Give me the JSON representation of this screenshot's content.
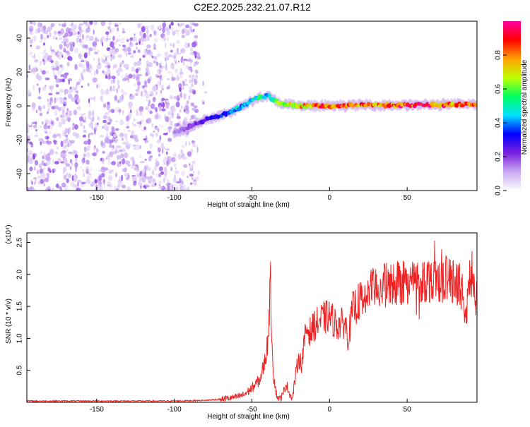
{
  "title": "C2E2.2025.232.21.07.R12",
  "chart_data": [
    {
      "type": "heatmap",
      "name": "spectrogram",
      "xlabel": "Height of straight line (km)",
      "ylabel": "Frequency (Hz)",
      "xlim": [
        -195,
        95
      ],
      "ylim": [
        -50,
        50
      ],
      "x_ticks": [
        -150,
        -100,
        -50,
        0,
        50
      ],
      "y_ticks": [
        -40,
        -20,
        0,
        20,
        40
      ],
      "grid": false,
      "colorbar": {
        "label": "Normalized spectral amplitude",
        "range": [
          0,
          1
        ],
        "ticks": [
          0.0,
          0.2,
          0.4,
          0.6,
          0.8
        ],
        "colors": [
          "#ffffff",
          "#c8a8f0",
          "#7a20e0",
          "#0000ff",
          "#00e0ff",
          "#00ff60",
          "#c0ff00",
          "#ffa000",
          "#ff0000",
          "#ff00a0"
        ]
      },
      "noise_region": {
        "x": [
          -195,
          -85
        ],
        "y": [
          -50,
          50
        ],
        "amplitude": [
          0.05,
          0.2
        ]
      },
      "ridge": {
        "x": [
          -100,
          -90,
          -80,
          -70,
          -60,
          -50,
          -45,
          -40,
          -35,
          -30,
          -20,
          0,
          20,
          50,
          95
        ],
        "y": [
          -16,
          -12,
          -8,
          -6,
          -2,
          3,
          5,
          6,
          3,
          1,
          0,
          0,
          0.5,
          0.5,
          1
        ],
        "amplitude": [
          0.15,
          0.2,
          0.3,
          0.35,
          0.45,
          0.5,
          0.55,
          0.5,
          0.6,
          0.7,
          0.8,
          0.9,
          0.85,
          0.95,
          0.85
        ]
      }
    },
    {
      "type": "line",
      "name": "snr",
      "xlabel": "Height of straight line (km)",
      "ylabel": "SNR (10 * v/v)",
      "y_multiplier": "(x10⁴)",
      "xlim": [
        -195,
        95
      ],
      "ylim": [
        0,
        2.65
      ],
      "x_ticks": [
        -150,
        -100,
        -50,
        0,
        50
      ],
      "y_ticks": [
        0.5,
        1.0,
        1.5,
        2.0,
        2.5
      ],
      "grid": false,
      "color": "#ee2222",
      "x": [
        -195,
        -100,
        -80,
        -70,
        -60,
        -55,
        -50,
        -45,
        -42,
        -40,
        -38,
        -37,
        -36,
        -34,
        -32,
        -30,
        -28,
        -26,
        -24,
        -22,
        -20,
        -18,
        -15,
        -12,
        -10,
        -5,
        0,
        5,
        10,
        12,
        15,
        20,
        25,
        30,
        40,
        50,
        60,
        70,
        80,
        85,
        88,
        90,
        95
      ],
      "y": [
        0.02,
        0.02,
        0.03,
        0.05,
        0.08,
        0.12,
        0.22,
        0.35,
        0.6,
        0.9,
        1.85,
        0.9,
        0.4,
        0.1,
        0.05,
        0.12,
        0.3,
        0.15,
        0.05,
        0.4,
        0.7,
        0.6,
        1.15,
        1.1,
        1.2,
        1.3,
        1.35,
        1.2,
        1.25,
        1.0,
        1.45,
        1.6,
        1.7,
        1.8,
        1.85,
        1.9,
        1.9,
        1.95,
        1.9,
        1.8,
        1.3,
        1.9,
        1.6
      ]
    }
  ]
}
